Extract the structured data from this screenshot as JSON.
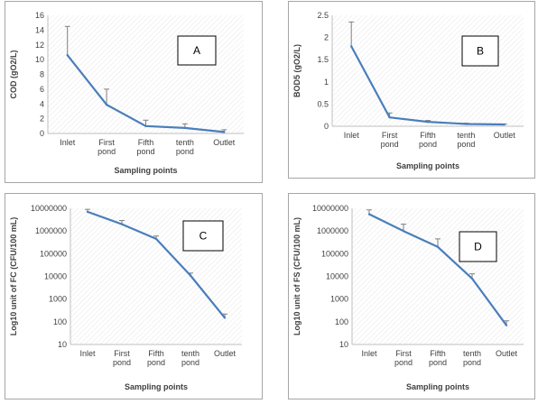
{
  "chart_data": [
    {
      "id": "A",
      "type": "line",
      "box_label": "A",
      "xlabel": "Sampling points",
      "ylabel": "COD (gO2/L)",
      "categories": [
        "Inlet",
        "First pond",
        "Fifth pond",
        "tenth pond",
        "Outlet"
      ],
      "values": [
        10.6,
        3.9,
        1.0,
        0.75,
        0.2
      ],
      "error_upper": [
        14.5,
        6.0,
        1.8,
        1.3,
        0.5
      ],
      "yscale": "linear",
      "ylim": [
        0,
        16
      ],
      "yticks": [
        0,
        2,
        4,
        6,
        8,
        10,
        12,
        14,
        16
      ],
      "ytick_labels": [
        "0",
        "2",
        "4",
        "6",
        "8",
        "10",
        "12",
        "14",
        "16"
      ],
      "grid": false,
      "color": "#4a7ebb"
    },
    {
      "id": "B",
      "type": "line",
      "box_label": "B",
      "xlabel": "Sampling points",
      "ylabel": "BOD5 (gO2/L)",
      "categories": [
        "Inlet",
        "First pond",
        "Fifth pond",
        "tenth pond",
        "Outlet"
      ],
      "values": [
        1.8,
        0.2,
        0.1,
        0.05,
        0.04
      ],
      "error_upper": [
        2.35,
        0.3,
        0.13,
        0.07,
        0.05
      ],
      "yscale": "linear",
      "ylim": [
        0,
        2.5
      ],
      "yticks": [
        0,
        0.5,
        1,
        1.5,
        2,
        2.5
      ],
      "ytick_labels": [
        "0",
        "0.5",
        "1",
        "1.5",
        "2",
        "2.5"
      ],
      "grid": false,
      "color": "#4a7ebb"
    },
    {
      "id": "C",
      "type": "line",
      "box_label": "C",
      "xlabel": "Sampling points",
      "ylabel": "Log10 unit of FC (CFU/100 mL)",
      "categories": [
        "Inlet",
        "First pond",
        "Fifth pond",
        "tenth pond",
        "Outlet"
      ],
      "values": [
        7000000,
        2000000,
        450000,
        11000,
        150
      ],
      "error_upper": [
        9000000,
        2900000,
        600000,
        14000,
        220
      ],
      "yscale": "log",
      "ylim": [
        10,
        10000000
      ],
      "yticks": [
        10,
        100,
        1000,
        10000,
        100000,
        1000000,
        10000000
      ],
      "ytick_labels": [
        "10",
        "100",
        "1000",
        "10000",
        "100000",
        "1000000",
        "10000000"
      ],
      "grid": false,
      "color": "#4a7ebb"
    },
    {
      "id": "D",
      "type": "line",
      "box_label": "D",
      "xlabel": "Sampling points",
      "ylabel": "Log10 unit of FS (CFU/100 mL)",
      "categories": [
        "Inlet",
        "First pond",
        "Fifth pond",
        "tenth pond",
        "Outlet"
      ],
      "values": [
        5500000,
        1000000,
        200000,
        8000,
        70
      ],
      "error_upper": [
        8500000,
        2000000,
        450000,
        13000,
        110
      ],
      "yscale": "log",
      "ylim": [
        10,
        10000000
      ],
      "yticks": [
        10,
        100,
        1000,
        10000,
        100000,
        1000000,
        10000000
      ],
      "ytick_labels": [
        "10",
        "100",
        "1000",
        "10000",
        "100000",
        "1000000",
        "10000000"
      ],
      "grid": false,
      "color": "#4a7ebb"
    }
  ]
}
